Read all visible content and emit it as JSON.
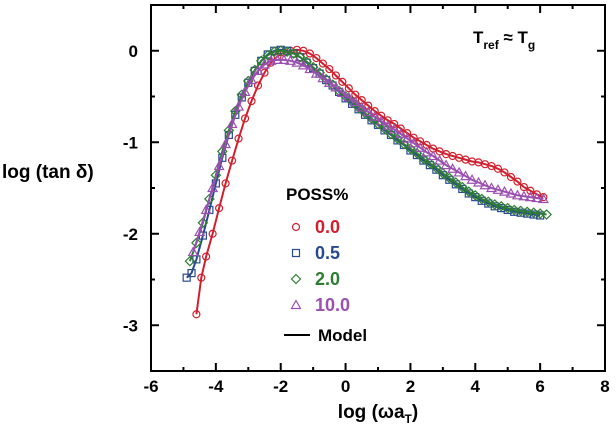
{
  "chart_data": {
    "type": "scatter",
    "xlabel": {
      "base": "log (ωa",
      "sub": "T",
      "end": ")"
    },
    "ylabel": "log (tan δ)",
    "xlim": [
      -6,
      8
    ],
    "ylim": [
      -3.5,
      0.5
    ],
    "xticks": [
      "-6",
      "-4",
      "-2",
      "0",
      "2",
      "4",
      "6",
      "8"
    ],
    "yticks": [
      "0",
      "-1",
      "-2",
      "-3"
    ],
    "annotation": {
      "T": "T",
      "ref": "ref",
      "approx": " ≈ T",
      "g": "g"
    },
    "legend": {
      "title": "POSS%",
      "placement": "center",
      "model_label": "Model"
    },
    "series": [
      {
        "name": "0.0",
        "color": "#d0202e",
        "marker": "circle",
        "points": [
          [
            -4.6,
            -2.88
          ],
          [
            -4.45,
            -2.48
          ],
          [
            -4.3,
            -2.25
          ],
          [
            -4.1,
            -2.0
          ],
          [
            -3.9,
            -1.72
          ],
          [
            -3.7,
            -1.45
          ],
          [
            -3.5,
            -1.2
          ],
          [
            -3.3,
            -0.96
          ],
          [
            -3.1,
            -0.74
          ],
          [
            -2.9,
            -0.55
          ],
          [
            -2.7,
            -0.38
          ],
          [
            -2.5,
            -0.24
          ],
          [
            -2.3,
            -0.13
          ],
          [
            -2.1,
            -0.06
          ],
          [
            -1.9,
            -0.02
          ],
          [
            -1.7,
            0.0
          ],
          [
            -1.5,
            0.01
          ],
          [
            -1.3,
            0.0
          ],
          [
            -1.1,
            -0.03
          ],
          [
            -0.9,
            -0.08
          ],
          [
            -0.7,
            -0.14
          ],
          [
            -0.5,
            -0.2
          ],
          [
            -0.3,
            -0.27
          ],
          [
            -0.1,
            -0.34
          ],
          [
            0.1,
            -0.41
          ],
          [
            0.3,
            -0.48
          ],
          [
            0.5,
            -0.54
          ],
          [
            0.7,
            -0.6
          ],
          [
            0.9,
            -0.66
          ],
          [
            1.1,
            -0.71
          ],
          [
            1.3,
            -0.76
          ],
          [
            1.5,
            -0.8
          ],
          [
            1.7,
            -0.85
          ],
          [
            1.9,
            -0.9
          ],
          [
            2.1,
            -0.95
          ],
          [
            2.3,
            -0.99
          ],
          [
            2.5,
            -1.03
          ],
          [
            2.7,
            -1.07
          ],
          [
            2.9,
            -1.1
          ],
          [
            3.1,
            -1.13
          ],
          [
            3.3,
            -1.15
          ],
          [
            3.5,
            -1.17
          ],
          [
            3.7,
            -1.19
          ],
          [
            3.9,
            -1.21
          ],
          [
            4.1,
            -1.22
          ],
          [
            4.3,
            -1.24
          ],
          [
            4.5,
            -1.26
          ],
          [
            4.7,
            -1.29
          ],
          [
            4.9,
            -1.33
          ],
          [
            5.1,
            -1.38
          ],
          [
            5.3,
            -1.43
          ],
          [
            5.5,
            -1.49
          ],
          [
            5.7,
            -1.53
          ],
          [
            5.9,
            -1.57
          ],
          [
            6.1,
            -1.6
          ]
        ]
      },
      {
        "name": "0.5",
        "color": "#2a4a8f",
        "marker": "square",
        "points": [
          [
            -4.9,
            -2.48
          ],
          [
            -4.75,
            -2.43
          ],
          [
            -4.6,
            -2.28
          ],
          [
            -4.4,
            -2.02
          ],
          [
            -4.2,
            -1.74
          ],
          [
            -4.0,
            -1.45
          ],
          [
            -3.8,
            -1.17
          ],
          [
            -3.6,
            -0.92
          ],
          [
            -3.4,
            -0.7
          ],
          [
            -3.2,
            -0.51
          ],
          [
            -3.0,
            -0.35
          ],
          [
            -2.8,
            -0.22
          ],
          [
            -2.6,
            -0.11
          ],
          [
            -2.4,
            -0.04
          ],
          [
            -2.2,
            0.0
          ],
          [
            -2.0,
            0.01
          ],
          [
            -1.8,
            0.0
          ],
          [
            -1.6,
            -0.03
          ],
          [
            -1.4,
            -0.07
          ],
          [
            -1.2,
            -0.13
          ],
          [
            -1.0,
            -0.19
          ],
          [
            -0.8,
            -0.25
          ],
          [
            -0.6,
            -0.32
          ],
          [
            -0.4,
            -0.38
          ],
          [
            -0.2,
            -0.45
          ],
          [
            0.0,
            -0.52
          ],
          [
            0.2,
            -0.58
          ],
          [
            0.4,
            -0.64
          ],
          [
            0.6,
            -0.7
          ],
          [
            0.8,
            -0.76
          ],
          [
            1.0,
            -0.81
          ],
          [
            1.2,
            -0.87
          ],
          [
            1.4,
            -0.92
          ],
          [
            1.6,
            -0.98
          ],
          [
            1.8,
            -1.03
          ],
          [
            2.0,
            -1.09
          ],
          [
            2.2,
            -1.14
          ],
          [
            2.4,
            -1.2
          ],
          [
            2.6,
            -1.25
          ],
          [
            2.8,
            -1.3
          ],
          [
            3.0,
            -1.36
          ],
          [
            3.2,
            -1.41
          ],
          [
            3.4,
            -1.46
          ],
          [
            3.6,
            -1.51
          ],
          [
            3.8,
            -1.56
          ],
          [
            4.0,
            -1.6
          ],
          [
            4.2,
            -1.64
          ],
          [
            4.4,
            -1.67
          ],
          [
            4.6,
            -1.7
          ],
          [
            4.8,
            -1.72
          ],
          [
            5.0,
            -1.74
          ],
          [
            5.2,
            -1.76
          ],
          [
            5.4,
            -1.77
          ],
          [
            5.6,
            -1.78
          ],
          [
            5.8,
            -1.79
          ],
          [
            6.0,
            -1.8
          ]
        ]
      },
      {
        "name": "2.0",
        "color": "#2e7d32",
        "marker": "diamond",
        "points": [
          [
            -4.8,
            -2.3
          ],
          [
            -4.6,
            -2.1
          ],
          [
            -4.4,
            -1.88
          ],
          [
            -4.2,
            -1.62
          ],
          [
            -4.0,
            -1.36
          ],
          [
            -3.8,
            -1.1
          ],
          [
            -3.6,
            -0.87
          ],
          [
            -3.4,
            -0.66
          ],
          [
            -3.2,
            -0.48
          ],
          [
            -3.0,
            -0.33
          ],
          [
            -2.8,
            -0.21
          ],
          [
            -2.6,
            -0.11
          ],
          [
            -2.4,
            -0.05
          ],
          [
            -2.2,
            -0.01
          ],
          [
            -2.0,
            0.0
          ],
          [
            -1.8,
            -0.01
          ],
          [
            -1.6,
            -0.03
          ],
          [
            -1.4,
            -0.07
          ],
          [
            -1.2,
            -0.12
          ],
          [
            -1.0,
            -0.18
          ],
          [
            -0.8,
            -0.24
          ],
          [
            -0.6,
            -0.31
          ],
          [
            -0.4,
            -0.37
          ],
          [
            -0.2,
            -0.44
          ],
          [
            0.0,
            -0.5
          ],
          [
            0.2,
            -0.56
          ],
          [
            0.4,
            -0.62
          ],
          [
            0.6,
            -0.68
          ],
          [
            0.8,
            -0.74
          ],
          [
            1.0,
            -0.8
          ],
          [
            1.2,
            -0.85
          ],
          [
            1.4,
            -0.91
          ],
          [
            1.6,
            -0.96
          ],
          [
            1.8,
            -1.02
          ],
          [
            2.0,
            -1.07
          ],
          [
            2.2,
            -1.12
          ],
          [
            2.4,
            -1.18
          ],
          [
            2.6,
            -1.23
          ],
          [
            2.8,
            -1.28
          ],
          [
            3.0,
            -1.34
          ],
          [
            3.2,
            -1.39
          ],
          [
            3.4,
            -1.44
          ],
          [
            3.6,
            -1.49
          ],
          [
            3.8,
            -1.54
          ],
          [
            4.0,
            -1.58
          ],
          [
            4.2,
            -1.62
          ],
          [
            4.4,
            -1.65
          ],
          [
            4.6,
            -1.68
          ],
          [
            4.8,
            -1.7
          ],
          [
            5.0,
            -1.72
          ],
          [
            5.2,
            -1.74
          ],
          [
            5.4,
            -1.75
          ],
          [
            5.6,
            -1.76
          ],
          [
            5.8,
            -1.77
          ],
          [
            6.0,
            -1.78
          ],
          [
            6.2,
            -1.79
          ]
        ]
      },
      {
        "name": "10.0",
        "color": "#9b4fb0",
        "marker": "triangle",
        "points": [
          [
            -4.7,
            -2.2
          ],
          [
            -4.5,
            -1.98
          ],
          [
            -4.3,
            -1.74
          ],
          [
            -4.1,
            -1.5
          ],
          [
            -3.9,
            -1.26
          ],
          [
            -3.7,
            -1.02
          ],
          [
            -3.5,
            -0.8
          ],
          [
            -3.3,
            -0.61
          ],
          [
            -3.1,
            -0.45
          ],
          [
            -2.9,
            -0.32
          ],
          [
            -2.7,
            -0.22
          ],
          [
            -2.5,
            -0.15
          ],
          [
            -2.3,
            -0.11
          ],
          [
            -2.1,
            -0.1
          ],
          [
            -1.9,
            -0.1
          ],
          [
            -1.7,
            -0.11
          ],
          [
            -1.5,
            -0.13
          ],
          [
            -1.3,
            -0.16
          ],
          [
            -1.1,
            -0.2
          ],
          [
            -0.9,
            -0.25
          ],
          [
            -0.7,
            -0.3
          ],
          [
            -0.5,
            -0.35
          ],
          [
            -0.3,
            -0.4
          ],
          [
            -0.1,
            -0.46
          ],
          [
            0.1,
            -0.51
          ],
          [
            0.3,
            -0.56
          ],
          [
            0.5,
            -0.62
          ],
          [
            0.7,
            -0.67
          ],
          [
            0.9,
            -0.72
          ],
          [
            1.1,
            -0.77
          ],
          [
            1.3,
            -0.82
          ],
          [
            1.5,
            -0.86
          ],
          [
            1.7,
            -0.91
          ],
          [
            1.9,
            -0.96
          ],
          [
            2.1,
            -1.01
          ],
          [
            2.3,
            -1.06
          ],
          [
            2.5,
            -1.11
          ],
          [
            2.7,
            -1.15
          ],
          [
            2.9,
            -1.2
          ],
          [
            3.1,
            -1.25
          ],
          [
            3.3,
            -1.29
          ],
          [
            3.5,
            -1.33
          ],
          [
            3.7,
            -1.37
          ],
          [
            3.9,
            -1.41
          ],
          [
            4.1,
            -1.44
          ],
          [
            4.3,
            -1.47
          ],
          [
            4.5,
            -1.5
          ],
          [
            4.7,
            -1.52
          ],
          [
            4.9,
            -1.54
          ],
          [
            5.1,
            -1.56
          ],
          [
            5.3,
            -1.58
          ],
          [
            5.5,
            -1.59
          ],
          [
            5.7,
            -1.6
          ],
          [
            5.9,
            -1.61
          ],
          [
            6.1,
            -1.62
          ]
        ]
      }
    ]
  }
}
